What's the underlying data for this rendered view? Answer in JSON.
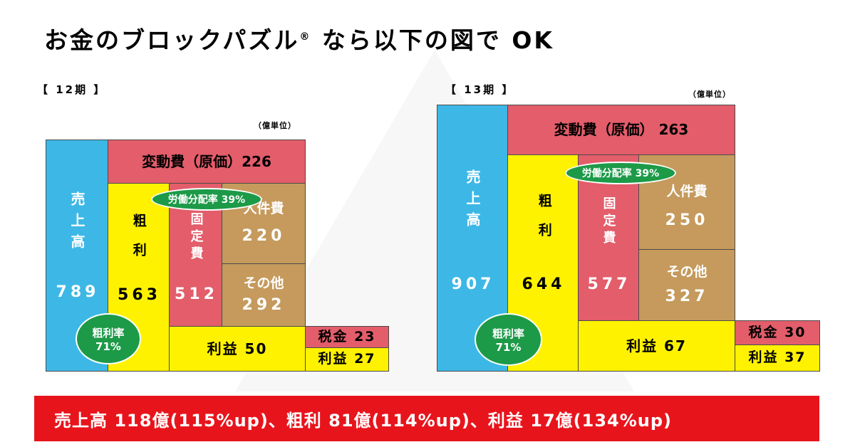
{
  "title": "お金のブロックパズル",
  "title_mark": "®",
  "title_suffix": "なら以下の図で OK",
  "unit_label": "（億単位）",
  "fy12": {
    "period": "【 12期 】",
    "sales_label": "売上高",
    "sales_value": "789",
    "gross_label": "粗利",
    "gross_value": "563",
    "variable_cost": "変動費（原価）226",
    "fixed_label": "固定費",
    "fixed_value": "512",
    "personnel_label": "人件費",
    "personnel_value": "220",
    "other_label": "その他",
    "other_value": "292",
    "profit_label": "利益 50",
    "tax_label": "税金 23",
    "net_label": "利益 27",
    "labor_share": "労働分配率 39%",
    "gross_rate_label": "粗利率",
    "gross_rate_value": "71%"
  },
  "fy13": {
    "period": "【 13期 】",
    "sales_label": "売上高",
    "sales_value": "907",
    "gross_label": "粗利",
    "gross_value": "644",
    "variable_cost": "変動費（原価） 263",
    "fixed_label": "固定費",
    "fixed_value": "577",
    "personnel_label": "人件費",
    "personnel_value": "250",
    "other_label": "その他",
    "other_value": "327",
    "profit_label": "利益 67",
    "tax_label": "税金 30",
    "net_label": "利益 37",
    "labor_share": "労働分配率 39%",
    "gross_rate_label": "粗利率",
    "gross_rate_value": "71%"
  },
  "summary": "売上高 118億(115%up)、粗利 81億(114%up)、利益 17億(134%up)",
  "colors": {
    "sales": "#3db8e6",
    "gross": "#fff200",
    "variable_cost": "#e35d6a",
    "expenses": "#c59a5c",
    "ratio_badge": "#1d9a48",
    "banner": "#e8141c"
  }
}
